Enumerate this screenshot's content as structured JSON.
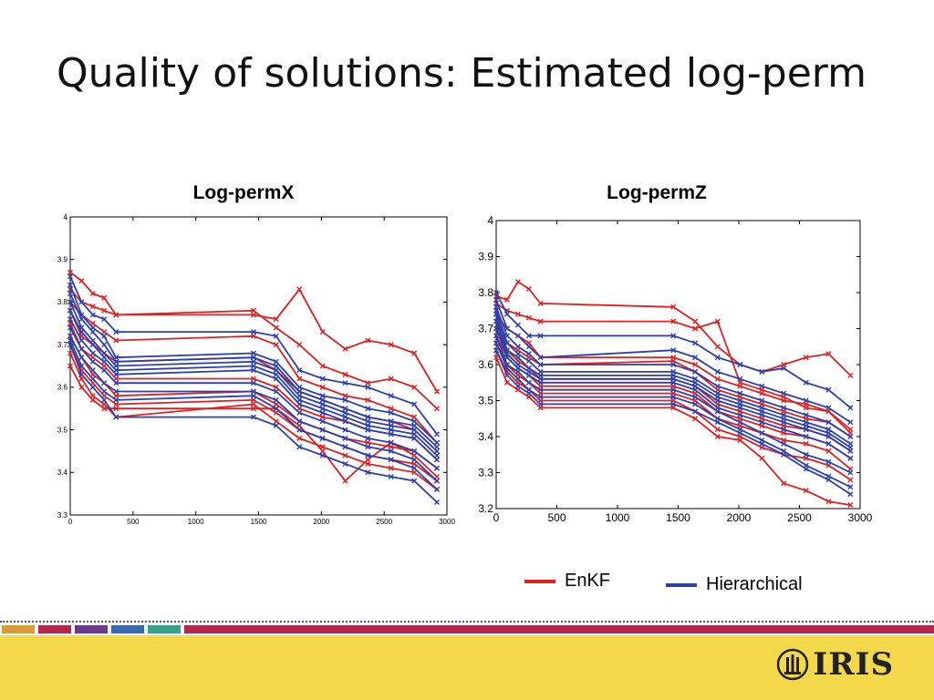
{
  "slide": {
    "title": "Quality of solutions: Estimated log-perm"
  },
  "legend": {
    "items": [
      {
        "label": "EnKF",
        "color": "#e02020"
      },
      {
        "label": "Hierarchical",
        "color": "#2a3fb0"
      }
    ]
  },
  "footer": {
    "logo_text": "IRIS",
    "background": "#f3d84a",
    "bands": [
      "#d89a3a",
      "#b0284a",
      "#6a3b8c",
      "#3a6ab0",
      "#3aa08c",
      "#b0284a"
    ]
  },
  "chart_data": [
    {
      "type": "line",
      "title": "Log-permX",
      "xlim": [
        0,
        3000
      ],
      "ylim": [
        3.3,
        4
      ],
      "xticks": [
        0,
        500,
        1000,
        1500,
        2000,
        2500,
        3000
      ],
      "yticks": [
        3.3,
        3.4,
        3.5,
        3.6,
        3.7,
        3.8,
        3.9,
        4
      ],
      "x": [
        0,
        90,
        180,
        270,
        365,
        1460,
        1640,
        1825,
        2010,
        2190,
        2370,
        2555,
        2740,
        2920
      ],
      "series": [
        {
          "color": "#e02020",
          "values": [
            3.87,
            3.85,
            3.82,
            3.81,
            3.77,
            3.77,
            3.76,
            3.83,
            3.73,
            3.69,
            3.71,
            3.7,
            3.68,
            3.59
          ]
        },
        {
          "color": "#e02020",
          "values": [
            3.83,
            3.8,
            3.79,
            3.78,
            3.77,
            3.78,
            3.74,
            3.7,
            3.65,
            3.63,
            3.61,
            3.62,
            3.6,
            3.55
          ]
        },
        {
          "color": "#e02020",
          "values": [
            3.8,
            3.77,
            3.75,
            3.73,
            3.71,
            3.72,
            3.7,
            3.62,
            3.6,
            3.58,
            3.57,
            3.55,
            3.53,
            3.47
          ]
        },
        {
          "color": "#e02020",
          "values": [
            3.78,
            3.72,
            3.7,
            3.68,
            3.66,
            3.67,
            3.64,
            3.59,
            3.57,
            3.55,
            3.53,
            3.52,
            3.5,
            3.45
          ]
        },
        {
          "color": "#e02020",
          "values": [
            3.75,
            3.69,
            3.67,
            3.65,
            3.62,
            3.62,
            3.6,
            3.55,
            3.53,
            3.52,
            3.5,
            3.49,
            3.48,
            3.43
          ]
        },
        {
          "color": "#e02020",
          "values": [
            3.72,
            3.67,
            3.63,
            3.61,
            3.58,
            3.59,
            3.56,
            3.52,
            3.5,
            3.48,
            3.47,
            3.46,
            3.45,
            3.41
          ]
        },
        {
          "color": "#e02020",
          "values": [
            3.7,
            3.64,
            3.61,
            3.58,
            3.56,
            3.57,
            3.54,
            3.5,
            3.48,
            3.46,
            3.44,
            3.43,
            3.42,
            3.38
          ]
        },
        {
          "color": "#e02020",
          "values": [
            3.68,
            3.62,
            3.58,
            3.56,
            3.53,
            3.56,
            3.52,
            3.48,
            3.46,
            3.44,
            3.42,
            3.41,
            3.4,
            3.36
          ]
        },
        {
          "color": "#e02020",
          "values": [
            3.65,
            3.6,
            3.57,
            3.55,
            3.55,
            3.55,
            3.55,
            3.51,
            3.45,
            3.38,
            3.43,
            3.47,
            3.44,
            3.39
          ]
        },
        {
          "color": "#2a3fb0",
          "values": [
            3.86,
            3.8,
            3.77,
            3.76,
            3.73,
            3.73,
            3.72,
            3.64,
            3.62,
            3.61,
            3.6,
            3.58,
            3.56,
            3.49
          ]
        },
        {
          "color": "#2a3fb0",
          "values": [
            3.84,
            3.77,
            3.74,
            3.72,
            3.67,
            3.68,
            3.66,
            3.6,
            3.58,
            3.57,
            3.55,
            3.54,
            3.52,
            3.47
          ]
        },
        {
          "color": "#2a3fb0",
          "values": [
            3.82,
            3.76,
            3.73,
            3.7,
            3.66,
            3.67,
            3.65,
            3.59,
            3.57,
            3.55,
            3.53,
            3.52,
            3.51,
            3.46
          ]
        },
        {
          "color": "#2a3fb0",
          "values": [
            3.8,
            3.74,
            3.71,
            3.68,
            3.65,
            3.66,
            3.64,
            3.58,
            3.56,
            3.54,
            3.52,
            3.51,
            3.5,
            3.45
          ]
        },
        {
          "color": "#2a3fb0",
          "values": [
            3.78,
            3.73,
            3.7,
            3.67,
            3.64,
            3.65,
            3.63,
            3.57,
            3.55,
            3.53,
            3.51,
            3.5,
            3.49,
            3.44
          ]
        },
        {
          "color": "#2a3fb0",
          "values": [
            3.76,
            3.71,
            3.68,
            3.66,
            3.63,
            3.64,
            3.62,
            3.56,
            3.54,
            3.52,
            3.5,
            3.49,
            3.48,
            3.43
          ]
        },
        {
          "color": "#2a3fb0",
          "values": [
            3.74,
            3.69,
            3.66,
            3.64,
            3.61,
            3.61,
            3.59,
            3.54,
            3.52,
            3.5,
            3.48,
            3.47,
            3.45,
            3.41
          ]
        },
        {
          "color": "#2a3fb0",
          "values": [
            3.72,
            3.67,
            3.64,
            3.61,
            3.59,
            3.59,
            3.57,
            3.52,
            3.5,
            3.48,
            3.46,
            3.45,
            3.43,
            3.38
          ]
        },
        {
          "color": "#2a3fb0",
          "values": [
            3.71,
            3.65,
            3.62,
            3.59,
            3.57,
            3.58,
            3.55,
            3.5,
            3.48,
            3.46,
            3.44,
            3.43,
            3.41,
            3.36
          ]
        },
        {
          "color": "#2a3fb0",
          "values": [
            3.7,
            3.63,
            3.6,
            3.57,
            3.53,
            3.53,
            3.51,
            3.46,
            3.44,
            3.42,
            3.4,
            3.39,
            3.38,
            3.33
          ]
        }
      ]
    },
    {
      "type": "line",
      "title": "Log-permZ",
      "xlim": [
        0,
        3000
      ],
      "ylim": [
        3.2,
        4
      ],
      "xticks": [
        0,
        500,
        1000,
        1500,
        2000,
        2500,
        3000
      ],
      "yticks": [
        3.2,
        3.3,
        3.4,
        3.5,
        3.6,
        3.7,
        3.8,
        3.9,
        4
      ],
      "x": [
        0,
        90,
        180,
        270,
        365,
        1460,
        1640,
        1825,
        2010,
        2190,
        2370,
        2555,
        2740,
        2920
      ],
      "series": [
        {
          "color": "#e02020",
          "values": [
            3.79,
            3.78,
            3.83,
            3.81,
            3.77,
            3.76,
            3.72,
            3.65,
            3.6,
            3.58,
            3.6,
            3.62,
            3.63,
            3.57
          ]
        },
        {
          "color": "#e02020",
          "values": [
            3.77,
            3.75,
            3.74,
            3.73,
            3.72,
            3.72,
            3.7,
            3.72,
            3.55,
            3.53,
            3.51,
            3.48,
            3.47,
            3.41
          ]
        },
        {
          "color": "#e02020",
          "values": [
            3.74,
            3.7,
            3.68,
            3.66,
            3.62,
            3.62,
            3.6,
            3.56,
            3.54,
            3.52,
            3.5,
            3.49,
            3.47,
            3.42
          ]
        },
        {
          "color": "#e02020",
          "values": [
            3.72,
            3.66,
            3.64,
            3.62,
            3.6,
            3.61,
            3.58,
            3.53,
            3.51,
            3.49,
            3.47,
            3.45,
            3.44,
            3.4
          ]
        },
        {
          "color": "#e02020",
          "values": [
            3.7,
            3.64,
            3.61,
            3.59,
            3.56,
            3.56,
            3.54,
            3.49,
            3.47,
            3.45,
            3.43,
            3.42,
            3.4,
            3.36
          ]
        },
        {
          "color": "#e02020",
          "values": [
            3.68,
            3.62,
            3.59,
            3.57,
            3.54,
            3.54,
            3.52,
            3.47,
            3.45,
            3.43,
            3.41,
            3.4,
            3.38,
            3.34
          ]
        },
        {
          "color": "#e02020",
          "values": [
            3.66,
            3.6,
            3.57,
            3.55,
            3.52,
            3.52,
            3.5,
            3.45,
            3.43,
            3.41,
            3.39,
            3.38,
            3.36,
            3.31
          ]
        },
        {
          "color": "#e02020",
          "values": [
            3.64,
            3.58,
            3.55,
            3.53,
            3.5,
            3.5,
            3.47,
            3.42,
            3.4,
            3.37,
            3.35,
            3.34,
            3.32,
            3.28
          ]
        },
        {
          "color": "#e02020",
          "values": [
            3.62,
            3.55,
            3.53,
            3.51,
            3.48,
            3.48,
            3.45,
            3.4,
            3.39,
            3.34,
            3.27,
            3.25,
            3.22,
            3.21
          ]
        },
        {
          "color": "#2a3fb0",
          "values": [
            3.8,
            3.74,
            3.71,
            3.68,
            3.68,
            3.68,
            3.66,
            3.62,
            3.6,
            3.58,
            3.59,
            3.55,
            3.53,
            3.48
          ]
        },
        {
          "color": "#2a3fb0",
          "values": [
            3.78,
            3.7,
            3.68,
            3.65,
            3.62,
            3.64,
            3.62,
            3.58,
            3.56,
            3.54,
            3.52,
            3.5,
            3.48,
            3.44
          ]
        },
        {
          "color": "#2a3fb0",
          "values": [
            3.76,
            3.68,
            3.65,
            3.63,
            3.6,
            3.6,
            3.58,
            3.54,
            3.52,
            3.5,
            3.48,
            3.46,
            3.44,
            3.4
          ]
        },
        {
          "color": "#2a3fb0",
          "values": [
            3.75,
            3.66,
            3.63,
            3.61,
            3.58,
            3.58,
            3.56,
            3.52,
            3.5,
            3.48,
            3.46,
            3.44,
            3.42,
            3.38
          ]
        },
        {
          "color": "#2a3fb0",
          "values": [
            3.74,
            3.64,
            3.62,
            3.59,
            3.57,
            3.57,
            3.55,
            3.51,
            3.49,
            3.47,
            3.45,
            3.43,
            3.41,
            3.37
          ]
        },
        {
          "color": "#2a3fb0",
          "values": [
            3.72,
            3.63,
            3.6,
            3.58,
            3.56,
            3.56,
            3.54,
            3.5,
            3.48,
            3.46,
            3.44,
            3.42,
            3.4,
            3.36
          ]
        },
        {
          "color": "#2a3fb0",
          "values": [
            3.7,
            3.62,
            3.59,
            3.57,
            3.55,
            3.55,
            3.53,
            3.48,
            3.46,
            3.44,
            3.42,
            3.4,
            3.38,
            3.34
          ]
        },
        {
          "color": "#2a3fb0",
          "values": [
            3.68,
            3.6,
            3.58,
            3.55,
            3.53,
            3.53,
            3.51,
            3.47,
            3.44,
            3.41,
            3.38,
            3.35,
            3.33,
            3.3
          ]
        },
        {
          "color": "#2a3fb0",
          "values": [
            3.66,
            3.59,
            3.56,
            3.53,
            3.51,
            3.51,
            3.49,
            3.45,
            3.42,
            3.39,
            3.36,
            3.32,
            3.29,
            3.26
          ]
        },
        {
          "color": "#2a3fb0",
          "values": [
            3.64,
            3.57,
            3.54,
            3.52,
            3.49,
            3.49,
            3.47,
            3.44,
            3.41,
            3.38,
            3.35,
            3.31,
            3.28,
            3.24
          ]
        }
      ]
    }
  ]
}
